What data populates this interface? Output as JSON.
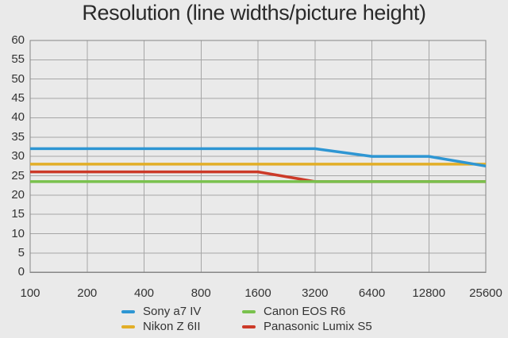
{
  "title": "Resolution (line widths/picture height)",
  "colors": {
    "background": "#eaeaea",
    "grid": "#a6a6a6",
    "plot_border": "#878787",
    "title_text": "#2a2a2a",
    "tick_text": "#333333"
  },
  "chart_data": {
    "type": "line",
    "title": "Resolution (line widths/picture height)",
    "xlabel": "",
    "ylabel": "",
    "x_scale": "log2-categorical",
    "categories": [
      "100",
      "200",
      "400",
      "800",
      "1600",
      "3200",
      "6400",
      "12800",
      "25600"
    ],
    "y_tick_labels": [
      "0",
      "5",
      "10",
      "15",
      "20",
      "25",
      "30",
      "35",
      "40",
      "45",
      "50",
      "55",
      "60"
    ],
    "ylim": [
      0,
      60
    ],
    "y_tick_step": 5,
    "grid": true,
    "legend_position": "bottom",
    "series": [
      {
        "name": "Sony a7 IV",
        "color": "#2e96d3",
        "values": [
          32,
          32,
          32,
          32,
          32,
          32,
          30,
          30,
          27.5
        ]
      },
      {
        "name": "Nikon Z 6II",
        "color": "#e2ae27",
        "values": [
          28,
          28,
          28,
          28,
          28,
          28,
          28,
          28,
          28
        ]
      },
      {
        "name": "Canon EOS R6",
        "color": "#79c14d",
        "values": [
          23.5,
          23.5,
          23.5,
          23.5,
          23.5,
          23.5,
          23.5,
          23.5,
          23.5
        ]
      },
      {
        "name": "Panasonic Lumix S5",
        "color": "#cc3a28",
        "values": [
          26,
          26,
          26,
          26,
          26,
          23.5,
          23.5,
          23.5,
          23.5
        ]
      }
    ]
  }
}
